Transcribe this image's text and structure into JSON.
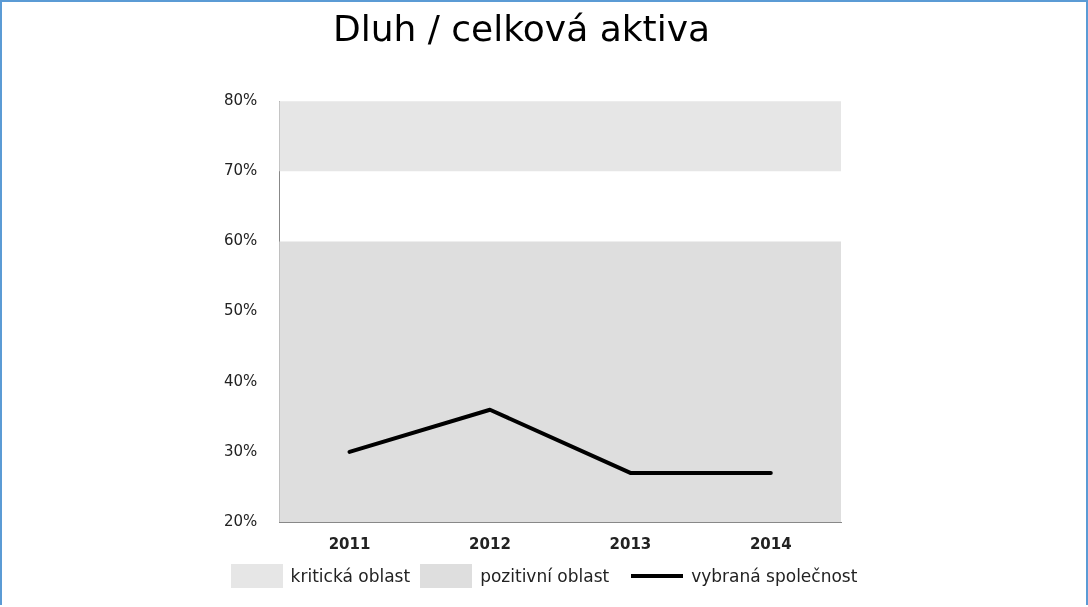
{
  "chart_data": {
    "type": "line",
    "title": "Dluh / celková aktiva",
    "categories": [
      "2011",
      "2012",
      "2013",
      "2014"
    ],
    "series": [
      {
        "name": "vybraná společnost",
        "color": "#000000",
        "values": [
          30,
          36,
          27,
          27
        ]
      }
    ],
    "ylim": [
      20,
      80
    ],
    "yticks": [
      {
        "value": 20,
        "label": "20%"
      },
      {
        "value": 30,
        "label": "30%"
      },
      {
        "value": 40,
        "label": "40%"
      },
      {
        "value": 50,
        "label": "50%"
      },
      {
        "value": 60,
        "label": "60%"
      },
      {
        "value": 70,
        "label": "70%"
      },
      {
        "value": 80,
        "label": "80%"
      }
    ],
    "bands": [
      {
        "axis": "y",
        "from": 70,
        "to": 80,
        "label": "kritická oblast",
        "color": "#e6e6e6"
      },
      {
        "axis": "y",
        "from": 20,
        "to": 60,
        "label": "pozitivní oblast",
        "color": "#dedede"
      }
    ],
    "grid": false,
    "legend": "bottom",
    "marker": "none",
    "line_style": "solid"
  }
}
